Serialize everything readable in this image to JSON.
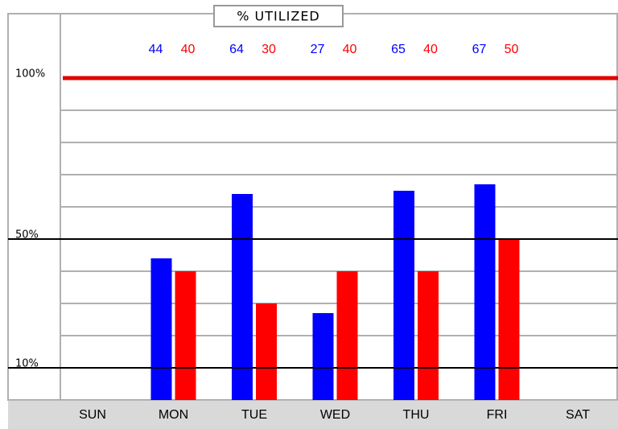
{
  "chart_data": {
    "type": "bar",
    "title": "% UTILIZED",
    "categories": [
      "SUN",
      "MON",
      "TUE",
      "WED",
      "THU",
      "FRI",
      "SAT"
    ],
    "series": [
      {
        "color": "#0000ff",
        "values": [
          null,
          44,
          64,
          27,
          65,
          67,
          null
        ]
      },
      {
        "color": "#ff0000",
        "values": [
          null,
          40,
          30,
          40,
          40,
          50,
          null
        ]
      }
    ],
    "ylim": [
      0,
      120
    ],
    "yticks": [
      {
        "value": 10,
        "label": "10%"
      },
      {
        "value": 50,
        "label": "50%"
      },
      {
        "value": 100,
        "label": "100%"
      }
    ],
    "tick_colors": [
      "#000000",
      "#000000",
      "#e00000"
    ],
    "minor_yticks": [
      20,
      30,
      40,
      60,
      70,
      80,
      90
    ],
    "grid": true
  }
}
